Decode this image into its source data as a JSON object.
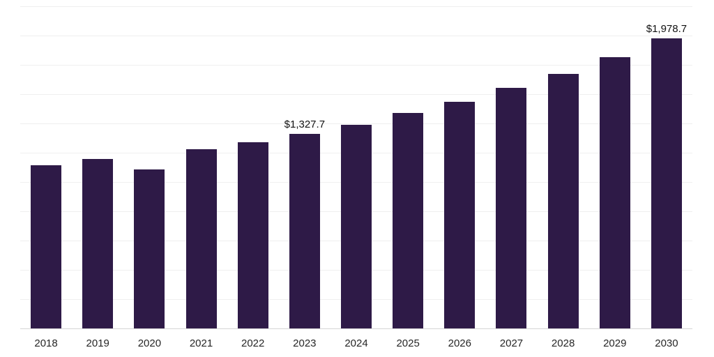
{
  "chart_data": {
    "type": "bar",
    "title": "",
    "xlabel": "",
    "ylabel": "",
    "categories": [
      "2018",
      "2019",
      "2020",
      "2021",
      "2022",
      "2023",
      "2024",
      "2025",
      "2026",
      "2027",
      "2028",
      "2029",
      "2030"
    ],
    "values": [
      1114.2,
      1157.4,
      1085.9,
      1224.1,
      1271.7,
      1327.7,
      1390.6,
      1471.6,
      1547.9,
      1643.2,
      1738.4,
      1852.7,
      1978.7
    ],
    "ylim": [
      0,
      2200
    ],
    "grid_step": 200,
    "grid": true,
    "y_axis_labels_visible": false,
    "legend": "none",
    "bar_color": "#2e1a47",
    "annotations": [
      {
        "category": "2023",
        "text": "$1,327.7"
      },
      {
        "category": "2030",
        "text": "$1,978.7"
      }
    ]
  }
}
